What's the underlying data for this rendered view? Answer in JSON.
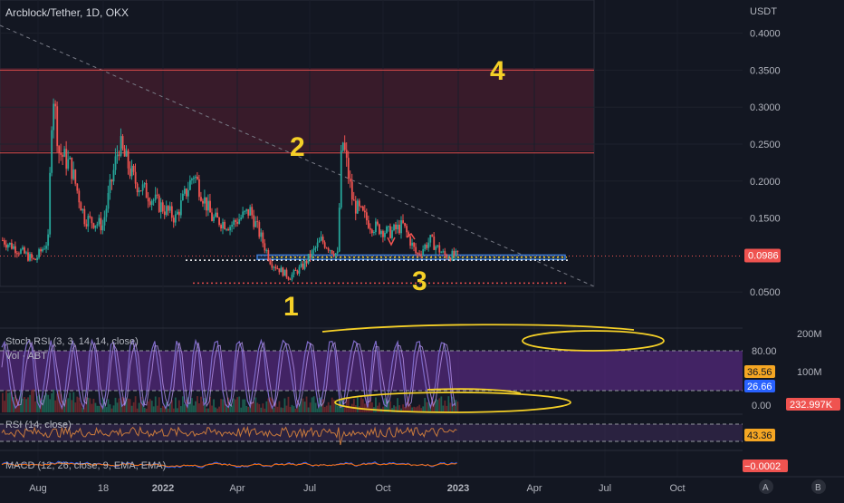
{
  "header": {
    "title": "Arcblock/Tether, 1D, OKX",
    "currency": "USDT"
  },
  "chart_data": {
    "type": "candlestick",
    "title": "Arcblock/Tether, 1D, OKX",
    "y_unit": "USDT",
    "y_ticks": [
      "0.4000",
      "0.3500",
      "0.3000",
      "0.2500",
      "0.2000",
      "0.1500",
      "0.0500"
    ],
    "x_ticks": [
      "Aug",
      "18",
      "2022",
      "Apr",
      "Jul",
      "Oct",
      "2023",
      "Apr",
      "Jul",
      "Oct"
    ],
    "last_price": "0.0986",
    "price_path": [
      {
        "t": 0,
        "v": 0.12
      },
      {
        "t": 20,
        "v": 0.105
      },
      {
        "t": 35,
        "v": 0.092
      },
      {
        "t": 50,
        "v": 0.12
      },
      {
        "t": 55,
        "v": 0.33
      },
      {
        "t": 62,
        "v": 0.24
      },
      {
        "t": 75,
        "v": 0.22
      },
      {
        "t": 90,
        "v": 0.15
      },
      {
        "t": 110,
        "v": 0.14
      },
      {
        "t": 128,
        "v": 0.25
      },
      {
        "t": 145,
        "v": 0.2
      },
      {
        "t": 170,
        "v": 0.17
      },
      {
        "t": 190,
        "v": 0.15
      },
      {
        "t": 210,
        "v": 0.21
      },
      {
        "t": 230,
        "v": 0.15
      },
      {
        "t": 250,
        "v": 0.14
      },
      {
        "t": 272,
        "v": 0.16
      },
      {
        "t": 295,
        "v": 0.09
      },
      {
        "t": 315,
        "v": 0.07
      },
      {
        "t": 330,
        "v": 0.085
      },
      {
        "t": 350,
        "v": 0.12
      },
      {
        "t": 368,
        "v": 0.1
      },
      {
        "t": 373,
        "v": 0.26
      },
      {
        "t": 385,
        "v": 0.17
      },
      {
        "t": 405,
        "v": 0.14
      },
      {
        "t": 425,
        "v": 0.13
      },
      {
        "t": 440,
        "v": 0.14
      },
      {
        "t": 455,
        "v": 0.1
      },
      {
        "t": 470,
        "v": 0.12
      },
      {
        "t": 485,
        "v": 0.1
      },
      {
        "t": 500,
        "v": 0.0986
      }
    ],
    "levels": [
      0.35,
      0.238
    ],
    "support_range": [
      0.094,
      0.1
    ],
    "dotted_levels": [
      0.093,
      0.062
    ],
    "annotations": [
      "1",
      "2",
      "3",
      "4"
    ],
    "indicators": {
      "stoch_rsi": {
        "label": "Stoch RSI (3, 3, 14, 14, close)",
        "ticks": [
          "80.00",
          "0.00"
        ],
        "values": [
          "36.56",
          "26.66"
        ]
      },
      "volume": {
        "label": "Vol · ABT",
        "ticks": [
          "200M",
          "100M"
        ],
        "value": "232.997K"
      },
      "rsi": {
        "label": "RSI (14, close)",
        "value": "43.36"
      },
      "macd": {
        "label": "MACD (12, 26, close, 9, EMA, EMA)",
        "value": "−0.0002"
      }
    }
  },
  "corner": {
    "a": "A",
    "b": "B"
  },
  "colors": {
    "up": "#26a69a",
    "down": "#ef5350",
    "accent": "#f5d027",
    "stoch_band": "#6a2e9b",
    "rsi_line": "#c97a3c"
  }
}
